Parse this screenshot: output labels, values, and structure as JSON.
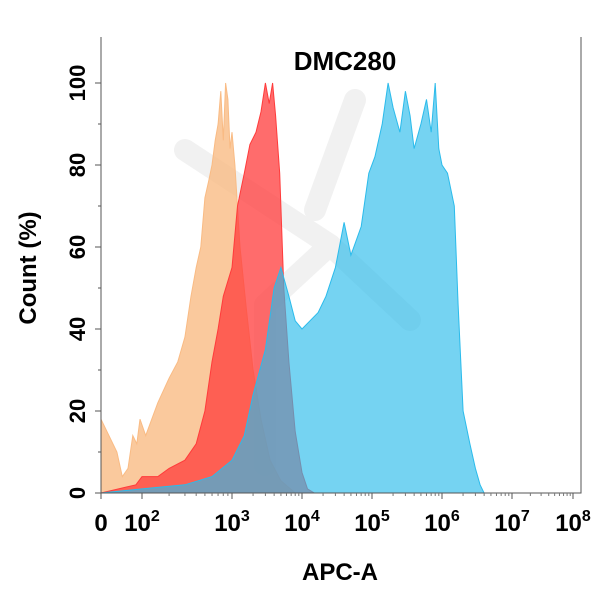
{
  "chart_data": {
    "type": "area",
    "title": "DMC280",
    "xlabel": "APC-A",
    "ylabel": "Count  (%)",
    "x_scale": "biexponential",
    "xlim": [
      0,
      100000000
    ],
    "ylim": [
      0,
      100
    ],
    "x_ticks": [
      {
        "value": 0,
        "base": "0",
        "exp": ""
      },
      {
        "value": 100,
        "base": "10",
        "exp": "2"
      },
      {
        "value": 1000,
        "base": "10",
        "exp": "3"
      },
      {
        "value": 10000,
        "base": "10",
        "exp": "4"
      },
      {
        "value": 100000,
        "base": "10",
        "exp": "5"
      },
      {
        "value": 1000000,
        "base": "10",
        "exp": "6"
      },
      {
        "value": 10000000,
        "base": "10",
        "exp": "7"
      },
      {
        "value": 100000000,
        "base": "10",
        "exp": "8"
      }
    ],
    "y_ticks": [
      0,
      20,
      40,
      60,
      80,
      100
    ],
    "grid": false,
    "legend": "none",
    "series": [
      {
        "color": "#F9BB84",
        "opacity": 0.8,
        "points": [
          [
            0,
            18
          ],
          [
            5,
            10
          ],
          [
            10,
            4
          ],
          [
            20,
            6
          ],
          [
            35,
            14
          ],
          [
            55,
            12
          ],
          [
            80,
            18
          ],
          [
            110,
            14
          ],
          [
            150,
            22
          ],
          [
            200,
            28
          ],
          [
            250,
            32
          ],
          [
            300,
            38
          ],
          [
            350,
            48
          ],
          [
            400,
            55
          ],
          [
            450,
            60
          ],
          [
            500,
            72
          ],
          [
            550,
            76
          ],
          [
            600,
            80
          ],
          [
            650,
            86
          ],
          [
            700,
            90
          ],
          [
            750,
            98
          ],
          [
            800,
            86
          ],
          [
            850,
            100
          ],
          [
            900,
            96
          ],
          [
            950,
            84
          ],
          [
            1000,
            88
          ],
          [
            1100,
            80
          ],
          [
            1300,
            60
          ],
          [
            1600,
            45
          ],
          [
            2000,
            30
          ],
          [
            2600,
            18
          ],
          [
            3500,
            8
          ],
          [
            5000,
            3
          ],
          [
            8000,
            0
          ]
        ]
      },
      {
        "color": "#FF3B3B",
        "opacity": 0.75,
        "points": [
          [
            0,
            0
          ],
          [
            50,
            2
          ],
          [
            100,
            4
          ],
          [
            150,
            4
          ],
          [
            200,
            6
          ],
          [
            300,
            8
          ],
          [
            400,
            12
          ],
          [
            500,
            20
          ],
          [
            600,
            32
          ],
          [
            700,
            40
          ],
          [
            800,
            48
          ],
          [
            1000,
            55
          ],
          [
            1200,
            70
          ],
          [
            1500,
            78
          ],
          [
            1800,
            85
          ],
          [
            2200,
            88
          ],
          [
            2600,
            93
          ],
          [
            3000,
            100
          ],
          [
            3400,
            95
          ],
          [
            3800,
            100
          ],
          [
            4200,
            92
          ],
          [
            4800,
            78
          ],
          [
            5500,
            50
          ],
          [
            6500,
            32
          ],
          [
            8000,
            15
          ],
          [
            10000,
            5
          ],
          [
            12000,
            1
          ],
          [
            15000,
            0
          ]
        ]
      },
      {
        "color": "#2BBBEB",
        "opacity": 0.65,
        "points": [
          [
            0,
            0
          ],
          [
            100,
            1
          ],
          [
            300,
            2
          ],
          [
            600,
            4
          ],
          [
            1000,
            8
          ],
          [
            1500,
            14
          ],
          [
            2000,
            24
          ],
          [
            3000,
            35
          ],
          [
            4000,
            50
          ],
          [
            5000,
            55
          ],
          [
            6500,
            48
          ],
          [
            8000,
            42
          ],
          [
            10000,
            40
          ],
          [
            13000,
            42
          ],
          [
            17000,
            44
          ],
          [
            22000,
            48
          ],
          [
            30000,
            55
          ],
          [
            40000,
            66
          ],
          [
            50000,
            58
          ],
          [
            70000,
            65
          ],
          [
            90000,
            78
          ],
          [
            110000,
            82
          ],
          [
            140000,
            90
          ],
          [
            170000,
            100
          ],
          [
            200000,
            94
          ],
          [
            250000,
            88
          ],
          [
            300000,
            98
          ],
          [
            350000,
            92
          ],
          [
            400000,
            84
          ],
          [
            500000,
            90
          ],
          [
            600000,
            96
          ],
          [
            700000,
            88
          ],
          [
            800000,
            100
          ],
          [
            900000,
            84
          ],
          [
            1000000,
            80
          ],
          [
            1200000,
            78
          ],
          [
            1500000,
            70
          ],
          [
            1700000,
            46
          ],
          [
            2000000,
            20
          ],
          [
            2500000,
            12
          ],
          [
            3000000,
            6
          ],
          [
            3500000,
            2
          ],
          [
            4000000,
            0
          ]
        ]
      }
    ]
  }
}
